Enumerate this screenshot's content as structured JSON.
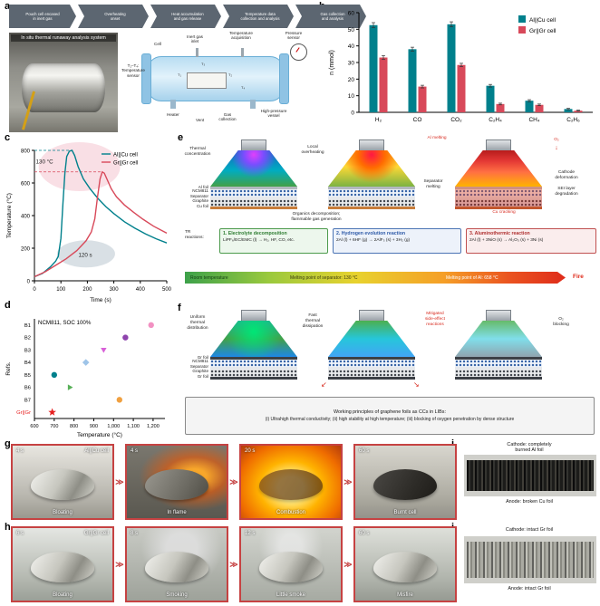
{
  "colors": {
    "teal": "#00808c",
    "red": "#d8495a",
    "frame_red": "#c64242"
  },
  "icons": {
    "sequence": "≫",
    "down": "↓",
    "dissipate_left": "↙",
    "dissipate_right": "↘"
  },
  "panels": {
    "a": {
      "label": "a",
      "flow_steps": [
        "Pouch cell encased\nin inert gas",
        "Overheating\nonset",
        "Heat accumulation\nand gas release",
        "Temperature data\ncollection and analysis",
        "Gas collection\nand analysis"
      ],
      "photo_caption": "In situ thermal runaway analysis system",
      "schematic": {
        "cell": "Cell",
        "inlet": "Inert gas\ninlet",
        "temp_acq": "Temperature\nacquisition",
        "pressure": "Pressure\nsensor",
        "tsensor": "T₁–T₄:\nTemperature\nsensor",
        "heater": "Heater",
        "vent": "Vent",
        "gas": "Gas\ncollection",
        "vessel": "High-pressure\nvessel",
        "sensors": [
          "T₁",
          "T₂",
          "T₃",
          "T₄"
        ]
      }
    },
    "b": {
      "label": "b"
    },
    "c": {
      "label": "c"
    },
    "d": {
      "label": "d"
    },
    "e": {
      "label": "e",
      "stack_labels": [
        "Al foil",
        "NCM811",
        "Separator",
        "Graphite",
        "Cu foil"
      ],
      "ann": {
        "thermal": "Thermal\nconcentration",
        "local": "Local\noverheating",
        "almelt": "Al melting",
        "o2": "O₂",
        "cathode": "Cathode\ndeformation",
        "sei": "SEI layer\ndegradation",
        "cu": "Cu cracking",
        "sepmelt": "Separator\nmelting",
        "organics": "Organics decomposition;\nflammable gas generation",
        "tr": "TR\nreactions:"
      },
      "reactions": [
        {
          "title": "1. Electrolyte decomposition",
          "formula": "LiPF₆/EC/EMC (l) → H₂, HF, CO, etc.",
          "border": "#4c9a4c",
          "bg": "#edf7ed",
          "title_color": "#2e7d32"
        },
        {
          "title": "2. Hydrogen evolution reaction",
          "formula": "2Al (l) + 6HF (g) → 2AlF₃ (s) + 3H₂ (g)",
          "border": "#4c74b4",
          "bg": "#edf2fa",
          "title_color": "#2e5aa8"
        },
        {
          "title": "3. Aluminothermic reaction",
          "formula": "2Al (l) + 3NiO (s) → Al₂O₃ (s) + 3Ni (s)",
          "border": "#c05050",
          "bg": "#faeded",
          "title_color": "#b03030"
        }
      ],
      "gradient": {
        "room": "Room temperature",
        "sep": "Melting point of separator: 130 °C",
        "al": "Melting point of Al: 658 °C",
        "fire": "Fire"
      }
    },
    "f": {
      "label": "f",
      "stack_labels": [
        "Gr foil",
        "NCM811",
        "Separator",
        "Graphite",
        "Gr foil"
      ],
      "ann": {
        "uniform": "Uniform\nthermal\ndistribution",
        "fast": "Fast\nthermal\ndissipation",
        "mitigated": "Mitigated\nside-effect\nreactions",
        "o2block": "O₂\nblocking"
      },
      "principles_title": "Working principles of graphene foils as CCs in LIBs:",
      "principles_body": "(i) Ultrahigh thermal conductivity; (ii) high stability at high temperature; (iii) blocking of oxygen penetration by dense structure"
    },
    "g": {
      "label": "g",
      "cell_label": "Al||Cu cell",
      "frames": [
        {
          "time": "4 s",
          "caption": "Bloating"
        },
        {
          "time": "4 s",
          "caption": "In flame"
        },
        {
          "time": "20 s",
          "caption": "Combustion"
        },
        {
          "time": "60 s",
          "caption": "Burnt cell"
        }
      ]
    },
    "h": {
      "label": "h",
      "cell_label": "Gr||Gr cell",
      "frames": [
        {
          "time": "6 s",
          "caption": "Bloating"
        },
        {
          "time": "8 s",
          "caption": "Smoking"
        },
        {
          "time": "12 s",
          "caption": "Little smoke"
        },
        {
          "time": "60 s",
          "caption": "Misfire"
        }
      ]
    },
    "i": {
      "label": "i",
      "top_caption": "Cathode: completely\nburned Al foil",
      "bottom_caption": "Anode: broken Cu foil"
    },
    "j": {
      "label": "j",
      "top_caption": "Cathode: intact Gr foil",
      "bottom_caption": "Anode: intact Gr foil"
    }
  },
  "chart_data": [
    {
      "id": "b",
      "type": "bar",
      "ylabel": "n (mmol)",
      "ylim": [
        0,
        60
      ],
      "yticks": [
        0,
        10,
        20,
        30,
        40,
        50,
        60
      ],
      "categories": [
        "H₂",
        "CO",
        "CO₂",
        "C₂H₄",
        "CH₄",
        "C₂H₆"
      ],
      "series": [
        {
          "name": "Al||Cu cell",
          "color": "#00808c",
          "values": [
            52.5,
            38,
            53,
            16,
            7,
            2
          ],
          "errors": [
            1.5,
            1.2,
            1.5,
            0.8,
            0.6,
            0.4
          ]
        },
        {
          "name": "Gr||Gr cell",
          "color": "#d8495a",
          "values": [
            33,
            15.5,
            28.5,
            5,
            4.5,
            1
          ],
          "errors": [
            1.2,
            0.8,
            1.0,
            0.5,
            0.5,
            0.3
          ]
        }
      ],
      "legend_position": "top-right"
    },
    {
      "id": "c",
      "type": "line",
      "xlabel": "Time (s)",
      "ylabel": "Temperature (°C)",
      "xlim": [
        0,
        500
      ],
      "ylim": [
        0,
        800
      ],
      "xticks": [
        0,
        100,
        200,
        300,
        400,
        500
      ],
      "yticks": [
        0,
        200,
        400,
        600,
        800
      ],
      "series": [
        {
          "name": "Al||Cu cell",
          "color": "#00808c",
          "points": [
            [
              0,
              25
            ],
            [
              30,
              45
            ],
            [
              60,
              85
            ],
            [
              80,
              120
            ],
            [
              90,
              150
            ],
            [
              100,
              260
            ],
            [
              108,
              480
            ],
            [
              115,
              660
            ],
            [
              122,
              762
            ],
            [
              132,
              795
            ],
            [
              142,
              800
            ],
            [
              152,
              768
            ],
            [
              165,
              700
            ],
            [
              185,
              625
            ],
            [
              210,
              565
            ],
            [
              240,
              505
            ],
            [
              270,
              455
            ],
            [
              300,
              412
            ],
            [
              340,
              362
            ],
            [
              380,
              322
            ],
            [
              420,
              288
            ],
            [
              460,
              258
            ],
            [
              500,
              232
            ]
          ]
        },
        {
          "name": "Gr||Gr cell",
          "color": "#d8495a",
          "points": [
            [
              0,
              25
            ],
            [
              40,
              55
            ],
            [
              80,
              95
            ],
            [
              120,
              135
            ],
            [
              160,
              185
            ],
            [
              195,
              245
            ],
            [
              215,
              300
            ],
            [
              228,
              380
            ],
            [
              238,
              510
            ],
            [
              248,
              625
            ],
            [
              256,
              668
            ],
            [
              264,
              660
            ],
            [
              275,
              620
            ],
            [
              290,
              565
            ],
            [
              310,
              515
            ],
            [
              340,
              465
            ],
            [
              375,
              420
            ],
            [
              410,
              378
            ],
            [
              450,
              335
            ],
            [
              500,
              292
            ]
          ]
        }
      ],
      "guides": [
        {
          "y": 800,
          "x2": 142,
          "color": "#00808c"
        },
        {
          "y": 668,
          "x2": 256,
          "color": "#d8495a"
        }
      ],
      "annotations": [
        {
          "text": "130 °C",
          "x": 38,
          "y": 720
        },
        {
          "text": "120 s",
          "x": 192,
          "y": 148
        }
      ],
      "peak_delta_temp": "130 °C",
      "onset_delta_time": "120 s",
      "legend_position": "top-right"
    },
    {
      "id": "d",
      "type": "scatter",
      "title": "NCM811, SOC 100%",
      "xlabel": "Temperature (°C)",
      "ylabel": "Refs.",
      "xlim": [
        600,
        1260
      ],
      "xticks": [
        600,
        700,
        800,
        900,
        1000,
        1100,
        1200
      ],
      "xtick_labels": [
        "600",
        "700",
        "800",
        "900",
        "1,000",
        "1,100",
        "1,200"
      ],
      "rows": [
        "B1",
        "B2",
        "B3",
        "B4",
        "B5",
        "B6",
        "B7",
        "Gr||Gr"
      ],
      "highlight_row": "Gr||Gr",
      "highlight_color": "#e62020",
      "points": [
        {
          "row": "B1",
          "x": 1190,
          "marker": "circle",
          "color": "#f291c2"
        },
        {
          "row": "B2",
          "x": 1060,
          "marker": "circle",
          "color": "#8e44ad"
        },
        {
          "row": "B3",
          "x": 950,
          "marker": "triangle-down",
          "color": "#d860d8"
        },
        {
          "row": "B4",
          "x": 860,
          "marker": "diamond",
          "color": "#9ec4e8"
        },
        {
          "row": "B5",
          "x": 700,
          "marker": "circle",
          "color": "#00808c"
        },
        {
          "row": "B6",
          "x": 780,
          "marker": "triangle-right",
          "color": "#58b058"
        },
        {
          "row": "B7",
          "x": 1030,
          "marker": "circle",
          "color": "#f0a040"
        },
        {
          "row": "Gr||Gr",
          "x": 690,
          "marker": "star",
          "color": "#e62020"
        }
      ]
    }
  ]
}
